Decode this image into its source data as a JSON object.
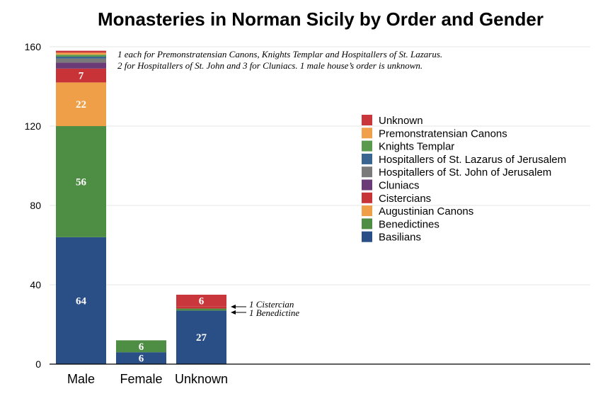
{
  "chart_data": {
    "type": "bar",
    "stacked": true,
    "title": "Monasteries in Norman Sicily by Order and Gender",
    "xlabel": "",
    "ylabel": "",
    "ylim": [
      0,
      160
    ],
    "yticks": [
      0,
      40,
      80,
      120,
      160
    ],
    "grid": true,
    "legend_position": "right",
    "categories": [
      "Male",
      "Female",
      "Unknown"
    ],
    "series": [
      {
        "name": "Basilians",
        "color": "#2a4f87",
        "values": [
          64,
          6,
          27
        ],
        "labels": [
          "64",
          "6",
          "27"
        ]
      },
      {
        "name": "Benedictines",
        "color": "#4e8d44",
        "values": [
          56,
          6,
          1
        ],
        "labels": [
          "56",
          "6",
          ""
        ]
      },
      {
        "name": "Augustinian Canons",
        "color": "#ef9f47",
        "values": [
          22,
          0,
          0
        ],
        "labels": [
          "22",
          "",
          ""
        ]
      },
      {
        "name": "Cistercians",
        "color": "#c83338",
        "values": [
          7,
          0,
          1
        ],
        "labels": [
          "7",
          "",
          ""
        ]
      },
      {
        "name": "Cluniacs",
        "color": "#6b3b78",
        "values": [
          3,
          0,
          0
        ],
        "labels": [
          "",
          "",
          ""
        ]
      },
      {
        "name": "Hospitallers of St. John of Jerusalem",
        "color": "#7a7a7a",
        "values": [
          2,
          0,
          0
        ],
        "labels": [
          "",
          "",
          ""
        ]
      },
      {
        "name": "Hospitallers of St. Lazarus of Jerusalem",
        "color": "#3a6590",
        "values": [
          1,
          0,
          0
        ],
        "labels": [
          "",
          "",
          ""
        ]
      },
      {
        "name": "Knights Templar",
        "color": "#5a9a4e",
        "values": [
          1,
          0,
          0
        ],
        "labels": [
          "",
          "",
          ""
        ]
      },
      {
        "name": "Premonstratensian Canons",
        "color": "#f0a04b",
        "values": [
          1,
          0,
          0
        ],
        "labels": [
          "",
          "",
          ""
        ]
      },
      {
        "name": "Unknown",
        "color": "#c9373d",
        "values": [
          1,
          0,
          6
        ],
        "labels": [
          "",
          "",
          "6"
        ]
      }
    ],
    "annotations": {
      "top_note_line1": "1 each for Premonstratensian Canons, Knights Templar and Hospitallers of St. Lazarus.",
      "top_note_line2": "2 for Hospitallers of St. John and 3 for Cluniacs. 1 male house’s order is unknown.",
      "cistercian_note": "1 Cistercian",
      "benedictine_note": "1 Benedictine"
    }
  }
}
